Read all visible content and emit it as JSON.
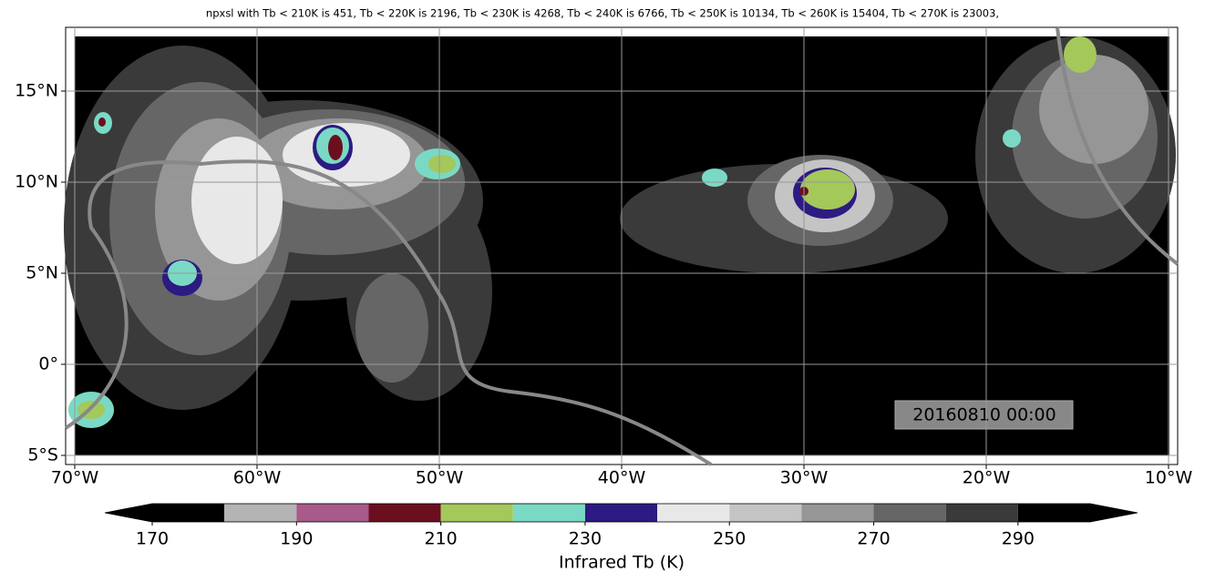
{
  "title": "npxsl with Tb < 210K is 451,  Tb < 220K is 2196,  Tb < 230K is 4268,  Tb < 240K is 6766,  Tb < 250K is 10134,  Tb < 260K is 15404,  Tb < 270K is 23003,",
  "map": {
    "xlim": [
      -70.5,
      -9.5
    ],
    "ylim": [
      -5.5,
      18.5
    ],
    "xticks": [
      {
        "value": -70,
        "label": "70°W"
      },
      {
        "value": -60,
        "label": "60°W"
      },
      {
        "value": -50,
        "label": "50°W"
      },
      {
        "value": -40,
        "label": "40°W"
      },
      {
        "value": -30,
        "label": "30°W"
      },
      {
        "value": -20,
        "label": "20°W"
      },
      {
        "value": -10,
        "label": "10°W"
      }
    ],
    "yticks": [
      {
        "value": 15,
        "label": "15°N"
      },
      {
        "value": 10,
        "label": "10°N"
      },
      {
        "value": 5,
        "label": "5°N"
      },
      {
        "value": 0,
        "label": "0°"
      },
      {
        "value": -5,
        "label": "5°S"
      }
    ],
    "grid": true,
    "timestamp": "20160810 00:00"
  },
  "colorbar": {
    "label": "Infrared Tb (K)",
    "levels": [
      170,
      180,
      190,
      200,
      210,
      220,
      230,
      240,
      250,
      260,
      270,
      280,
      290,
      300
    ],
    "colors": [
      "#000000",
      "#b4b4b4",
      "#a85a8a",
      "#6b0f1f",
      "#a4c85a",
      "#7ad9c4",
      "#2d1a82",
      "#e8e8e8",
      "#c4c4c4",
      "#969696",
      "#666666",
      "#3a3a3a",
      "#000000"
    ],
    "ticks": [
      170,
      190,
      210,
      230,
      250,
      270,
      290
    ]
  }
}
